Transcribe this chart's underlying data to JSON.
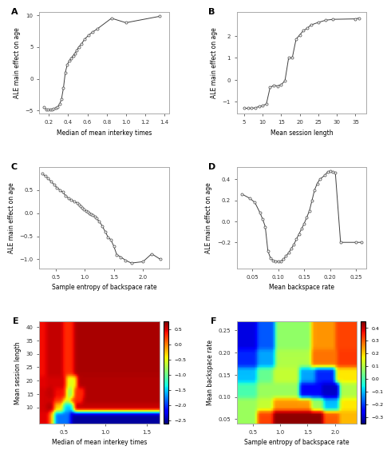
{
  "A": {
    "xlabel": "Median of mean interkey times",
    "ylabel": "ALE main effect on age",
    "xlim": [
      0.1,
      1.45
    ],
    "ylim": [
      -5.5,
      10.5
    ],
    "yticks": [
      -5,
      0,
      5,
      10
    ],
    "xticks": [
      0.2,
      0.4,
      0.6,
      0.8,
      1.0,
      1.2,
      1.4
    ],
    "x": [
      0.15,
      0.17,
      0.19,
      0.21,
      0.23,
      0.25,
      0.27,
      0.29,
      0.31,
      0.33,
      0.35,
      0.37,
      0.39,
      0.41,
      0.43,
      0.45,
      0.47,
      0.49,
      0.51,
      0.54,
      0.57,
      0.61,
      0.65,
      0.7,
      0.85,
      1.0,
      1.35
    ],
    "y": [
      -4.5,
      -4.8,
      -4.85,
      -4.85,
      -4.8,
      -4.75,
      -4.6,
      -4.4,
      -4.0,
      -3.2,
      -1.5,
      1.0,
      2.2,
      2.8,
      3.2,
      3.6,
      4.0,
      4.5,
      5.0,
      5.5,
      6.2,
      6.8,
      7.3,
      7.8,
      9.5,
      8.8,
      9.8
    ]
  },
  "B": {
    "xlabel": "Mean session length",
    "ylabel": "ALE main effect on age",
    "xlim": [
      3,
      38
    ],
    "ylim": [
      -1.55,
      3.1
    ],
    "yticks": [
      -1,
      0,
      1,
      2
    ],
    "xticks": [
      5,
      10,
      15,
      20,
      25,
      30,
      35
    ],
    "x": [
      5,
      6,
      7,
      8,
      9,
      10,
      11,
      12,
      13,
      14,
      15,
      16,
      17,
      18,
      19,
      20,
      21,
      22,
      23,
      25,
      27,
      29,
      35,
      36
    ],
    "y": [
      -1.3,
      -1.3,
      -1.3,
      -1.28,
      -1.22,
      -1.18,
      -1.1,
      -0.35,
      -0.25,
      -0.28,
      -0.22,
      -0.05,
      1.0,
      1.02,
      1.85,
      2.05,
      2.25,
      2.35,
      2.5,
      2.62,
      2.72,
      2.76,
      2.78,
      2.82
    ]
  },
  "C": {
    "xlabel": "Sample entropy of backspace rate",
    "ylabel": "ALE main effect on age",
    "xlim": [
      0.22,
      2.45
    ],
    "ylim": [
      -1.2,
      1.0
    ],
    "yticks": [
      -1.0,
      -0.5,
      0.0,
      0.5
    ],
    "xticks": [
      0.5,
      1.0,
      1.5,
      2.0
    ],
    "x": [
      0.27,
      0.32,
      0.37,
      0.42,
      0.47,
      0.52,
      0.57,
      0.62,
      0.67,
      0.72,
      0.77,
      0.82,
      0.87,
      0.9,
      0.93,
      0.96,
      0.99,
      1.02,
      1.05,
      1.08,
      1.11,
      1.14,
      1.17,
      1.2,
      1.25,
      1.3,
      1.35,
      1.4,
      1.45,
      1.5,
      1.55,
      1.62,
      1.7,
      1.8,
      2.0,
      2.15,
      2.3
    ],
    "y": [
      0.85,
      0.8,
      0.75,
      0.68,
      0.62,
      0.55,
      0.5,
      0.45,
      0.38,
      0.32,
      0.28,
      0.25,
      0.22,
      0.18,
      0.15,
      0.12,
      0.08,
      0.05,
      0.03,
      0.0,
      -0.02,
      -0.04,
      -0.07,
      -0.12,
      -0.18,
      -0.28,
      -0.4,
      -0.52,
      -0.58,
      -0.72,
      -0.9,
      -0.95,
      -1.02,
      -1.08,
      -1.05,
      -0.88,
      -1.0
    ]
  },
  "D": {
    "xlabel": "Mean backspace rate",
    "ylabel": "ALE main effect on age",
    "xlim": [
      0.02,
      0.27
    ],
    "ylim": [
      -0.45,
      0.52
    ],
    "yticks": [
      -0.2,
      0.0,
      0.2,
      0.4
    ],
    "xticks": [
      0.05,
      0.1,
      0.15,
      0.2,
      0.25
    ],
    "x": [
      0.03,
      0.045,
      0.055,
      0.065,
      0.07,
      0.075,
      0.08,
      0.085,
      0.09,
      0.095,
      0.1,
      0.105,
      0.11,
      0.115,
      0.12,
      0.125,
      0.13,
      0.135,
      0.14,
      0.145,
      0.15,
      0.155,
      0.16,
      0.165,
      0.17,
      0.175,
      0.18,
      0.19,
      0.195,
      0.2,
      0.205,
      0.21,
      0.22,
      0.25,
      0.26
    ],
    "y": [
      0.26,
      0.22,
      0.18,
      0.08,
      0.02,
      -0.05,
      -0.28,
      -0.35,
      -0.37,
      -0.38,
      -0.38,
      -0.38,
      -0.36,
      -0.33,
      -0.3,
      -0.26,
      -0.22,
      -0.17,
      -0.12,
      -0.07,
      -0.02,
      0.04,
      0.1,
      0.2,
      0.3,
      0.36,
      0.4,
      0.44,
      0.47,
      0.48,
      0.47,
      0.46,
      -0.2,
      -0.2,
      -0.2
    ]
  },
  "E": {
    "xlabel": "Median of mean interkey times",
    "ylabel": "Mean session length",
    "xlim": [
      0.2,
      1.65
    ],
    "ylim": [
      4,
      42
    ],
    "xticks": [
      0.5,
      1.0,
      1.5
    ],
    "yticks": [
      10,
      15,
      20,
      25,
      30,
      35,
      40
    ],
    "colorbar_ticks": [
      0.5,
      0.0,
      -0.5,
      -1.0,
      -1.5,
      -2.0,
      -2.5
    ],
    "vmin": -2.6,
    "vmax": 0.75
  },
  "F": {
    "xlabel": "Sample entropy of backspace rate",
    "ylabel": "Mean backspace rate",
    "xlim": [
      0.2,
      2.4
    ],
    "ylim": [
      0.04,
      0.27
    ],
    "xticks": [
      0.5,
      1.0,
      1.5,
      2.0
    ],
    "yticks": [
      0.05,
      0.1,
      0.15,
      0.2,
      0.25
    ],
    "colorbar_ticks": [
      0.4,
      0.3,
      0.2,
      0.1,
      0.0,
      -0.1,
      -0.2,
      -0.3
    ],
    "vmin": -0.35,
    "vmax": 0.45
  },
  "line_color": "#404040",
  "marker_color": "white",
  "marker_edge_color": "#404040"
}
